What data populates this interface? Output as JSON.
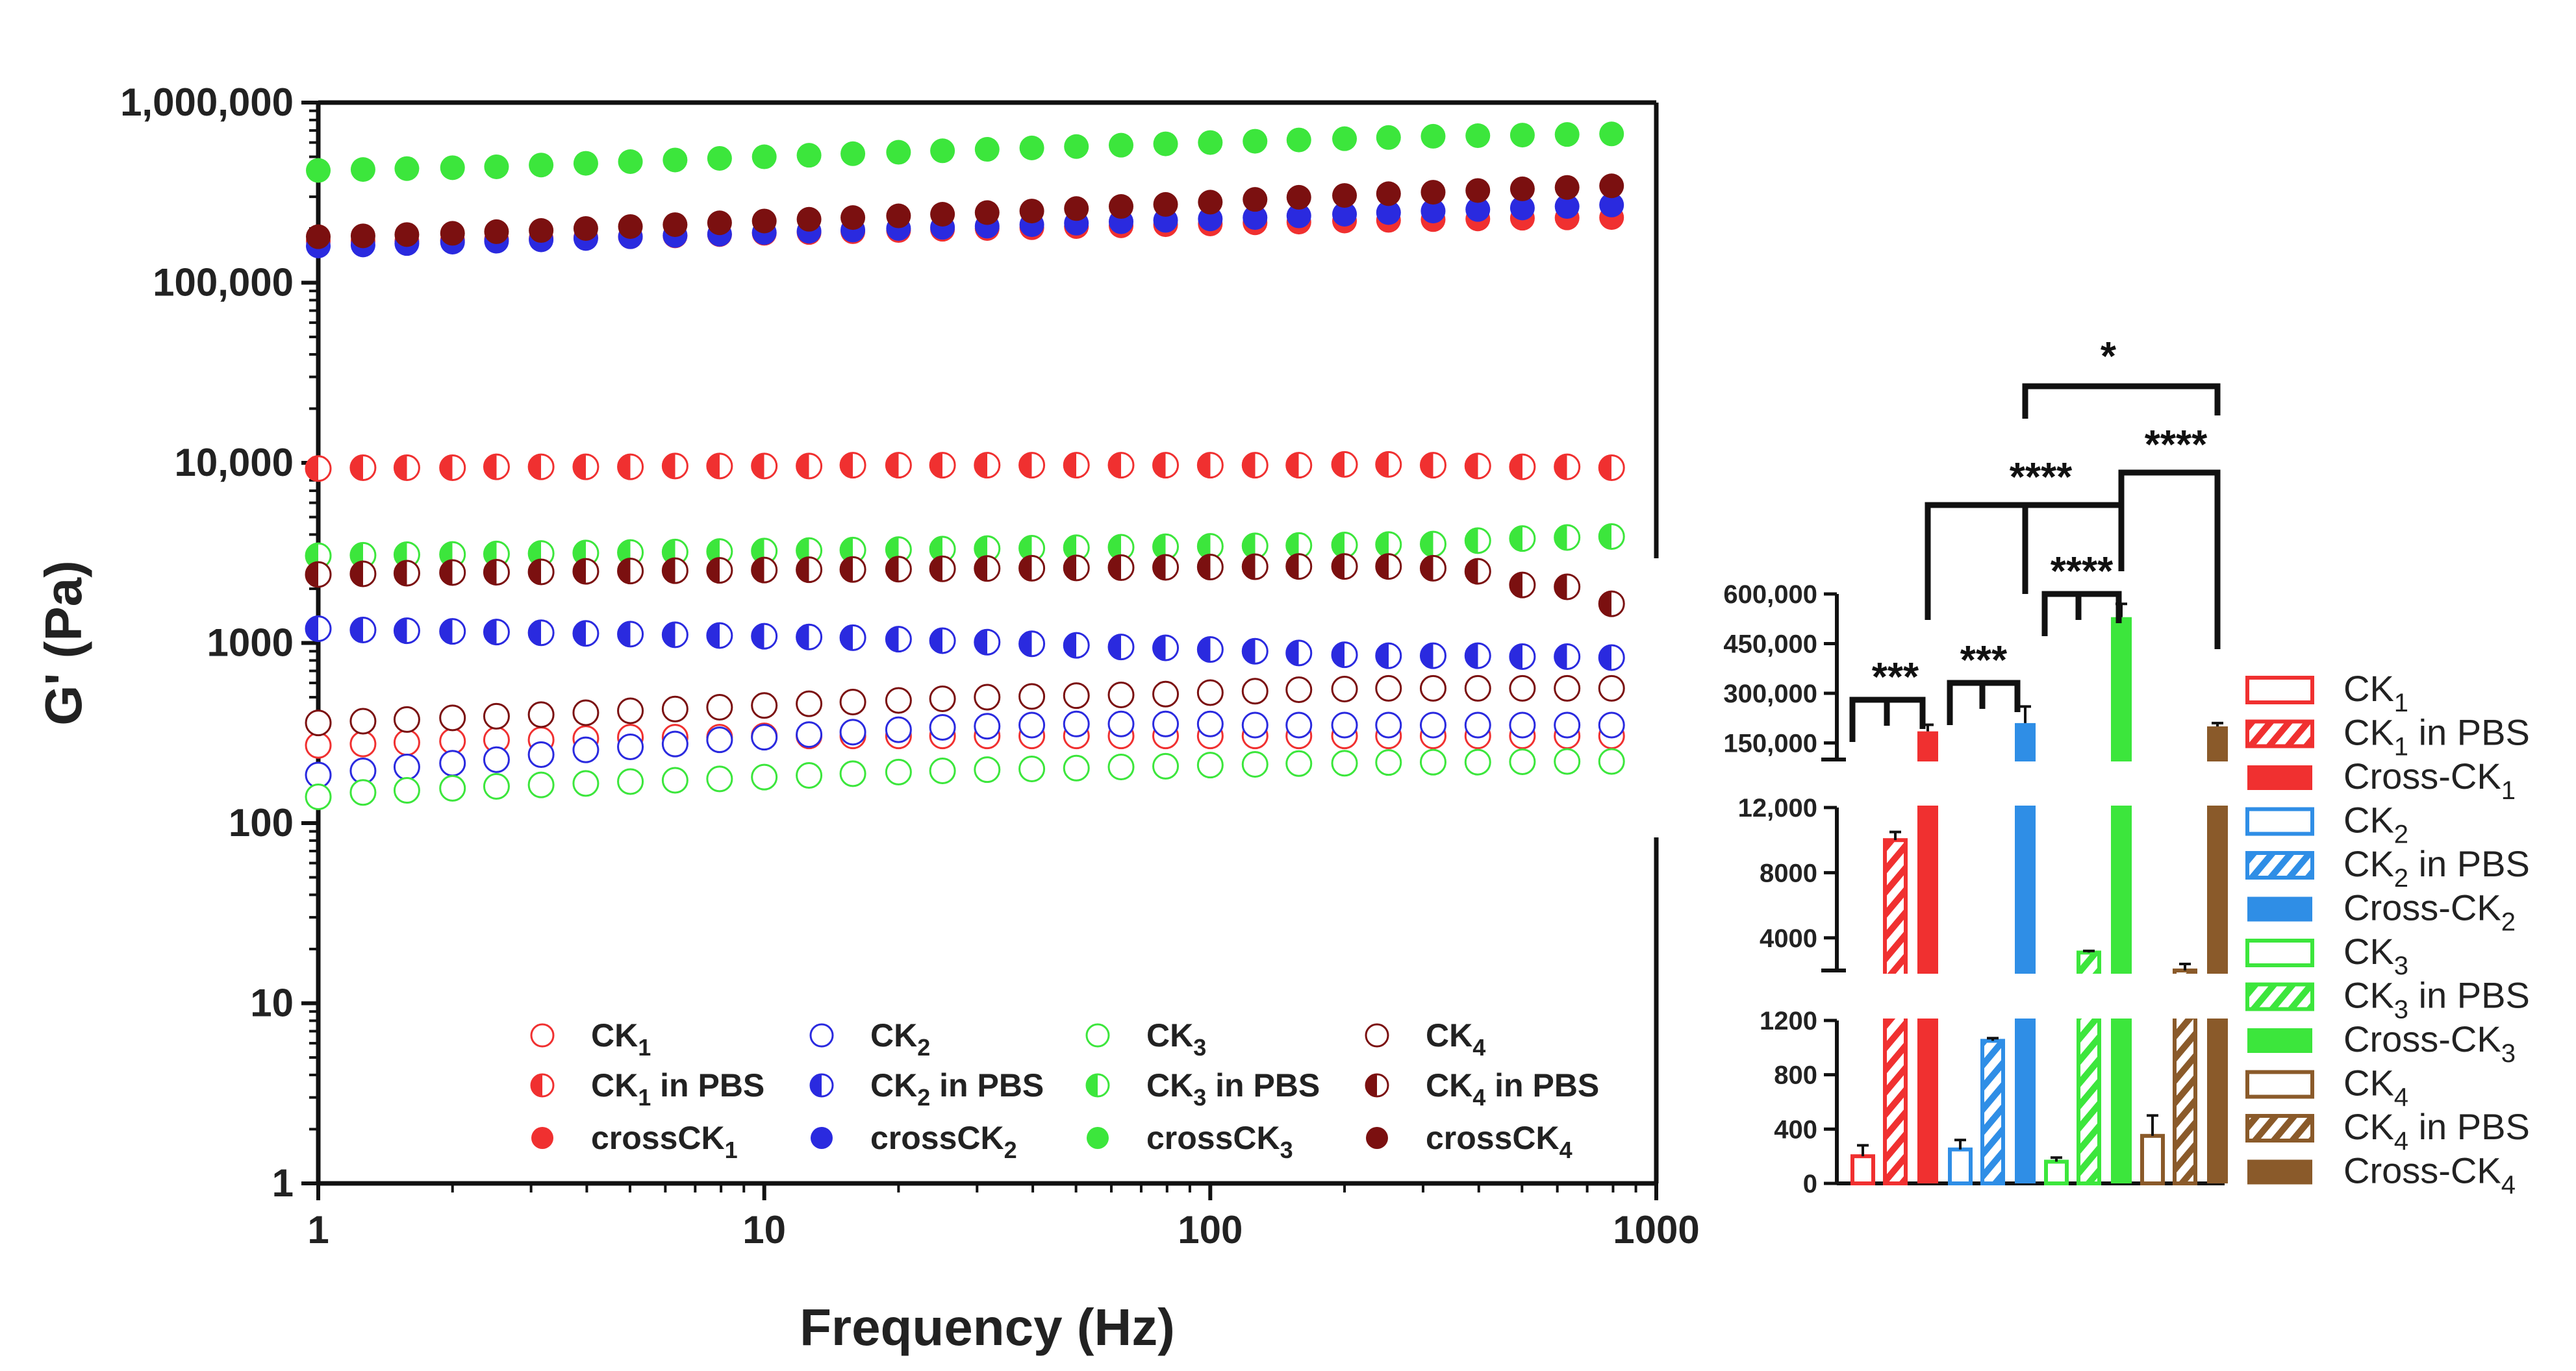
{
  "colors": {
    "CK1": "#f03030",
    "CK2": "#2a2adf",
    "CK3": "#3ce63c",
    "CK4": "#7b1010",
    "barCK1": "#f03030",
    "barCK2": "#2f8ee6",
    "barCK3": "#3ce63c",
    "barCK4": "#8a5a2a"
  },
  "chart_data": [
    {
      "type": "scatter",
      "title": "",
      "xlabel": "Frequency (Hz)",
      "ylabel": "G' (Pa)",
      "xscale": "log",
      "yscale": "log",
      "xlim": [
        1,
        1000
      ],
      "ylim": [
        1,
        1000000
      ],
      "x_ticks": [
        1,
        10,
        100,
        1000
      ],
      "x_tick_labels": [
        "1",
        "10",
        "100",
        "1000"
      ],
      "y_ticks": [
        1,
        10,
        100,
        1000,
        10000,
        100000,
        1000000
      ],
      "y_tick_labels": [
        "1",
        "10",
        "100",
        "1000",
        "10,000",
        "100,000",
        "1,000,000"
      ],
      "x": [
        1,
        1.26,
        1.58,
        2,
        2.51,
        3.16,
        3.98,
        5.01,
        6.31,
        7.94,
        10,
        12.6,
        15.8,
        20,
        25.1,
        31.6,
        39.8,
        50.1,
        63.1,
        79.4,
        100,
        126,
        158,
        200,
        251,
        316,
        398,
        501,
        631,
        794
      ],
      "series": [
        {
          "name": "CK1",
          "style": "open",
          "color_key": "CK1",
          "values": [
            270,
            275,
            280,
            285,
            290,
            290,
            295,
            300,
            300,
            300,
            305,
            305,
            305,
            305,
            305,
            305,
            305,
            305,
            305,
            305,
            305,
            305,
            305,
            305,
            305,
            305,
            305,
            305,
            305,
            305
          ]
        },
        {
          "name": "CK1 in PBS",
          "style": "half",
          "color_key": "CK1",
          "values": [
            9300,
            9400,
            9400,
            9400,
            9500,
            9500,
            9500,
            9500,
            9600,
            9600,
            9600,
            9600,
            9700,
            9700,
            9700,
            9700,
            9700,
            9700,
            9700,
            9700,
            9700,
            9700,
            9700,
            9800,
            9800,
            9700,
            9600,
            9500,
            9500,
            9400
          ]
        },
        {
          "name": "crossCK1",
          "style": "filled",
          "color_key": "CK1",
          "values": [
            170000,
            170000,
            170000,
            172000,
            174000,
            176000,
            178000,
            180000,
            182000,
            185000,
            188000,
            190000,
            192000,
            195000,
            198000,
            200000,
            202000,
            205000,
            207000,
            210000,
            212000,
            215000,
            217000,
            220000,
            222000,
            224000,
            226000,
            228000,
            229000,
            230000
          ]
        },
        {
          "name": "CK2",
          "style": "open",
          "color_key": "CK2",
          "values": [
            185,
            195,
            205,
            215,
            225,
            240,
            255,
            265,
            275,
            290,
            300,
            310,
            320,
            330,
            340,
            345,
            350,
            355,
            355,
            355,
            355,
            350,
            350,
            350,
            350,
            350,
            350,
            350,
            350,
            350
          ]
        },
        {
          "name": "CK2 in PBS",
          "style": "half",
          "color_key": "CK2",
          "values": [
            1200,
            1180,
            1170,
            1160,
            1150,
            1140,
            1130,
            1120,
            1110,
            1100,
            1090,
            1080,
            1070,
            1050,
            1030,
            1010,
            990,
            970,
            950,
            940,
            920,
            900,
            880,
            860,
            850,
            850,
            850,
            840,
            840,
            830
          ]
        },
        {
          "name": "crossCK2",
          "style": "filled",
          "color_key": "CK2",
          "values": [
            160000,
            162000,
            165000,
            168000,
            170000,
            173000,
            176000,
            180000,
            183000,
            186000,
            190000,
            193000,
            196000,
            200000,
            203000,
            206000,
            210000,
            214000,
            218000,
            222000,
            226000,
            230000,
            235000,
            240000,
            245000,
            250000,
            255000,
            260000,
            265000,
            270000
          ]
        },
        {
          "name": "CK3",
          "style": "open",
          "color_key": "CK3",
          "values": [
            140,
            148,
            152,
            156,
            160,
            163,
            166,
            170,
            173,
            176,
            180,
            184,
            188,
            192,
            195,
            198,
            200,
            202,
            205,
            207,
            210,
            212,
            214,
            215,
            217,
            218,
            218,
            219,
            220,
            220
          ]
        },
        {
          "name": "CK3 in PBS",
          "style": "half",
          "color_key": "CK3",
          "values": [
            3050,
            3070,
            3090,
            3100,
            3120,
            3140,
            3160,
            3180,
            3200,
            3220,
            3240,
            3260,
            3280,
            3300,
            3320,
            3340,
            3360,
            3380,
            3400,
            3420,
            3440,
            3460,
            3480,
            3500,
            3520,
            3540,
            3700,
            3800,
            3850,
            3900
          ]
        },
        {
          "name": "crossCK3",
          "style": "filled",
          "color_key": "CK3",
          "values": [
            420000,
            425000,
            430000,
            435000,
            440000,
            450000,
            460000,
            470000,
            480000,
            490000,
            500000,
            510000,
            520000,
            530000,
            540000,
            550000,
            560000,
            570000,
            580000,
            590000,
            600000,
            610000,
            620000,
            630000,
            640000,
            650000,
            655000,
            660000,
            665000,
            670000
          ]
        },
        {
          "name": "CK4",
          "style": "open",
          "color_key": "CK4",
          "values": [
            360,
            368,
            376,
            384,
            392,
            400,
            410,
            420,
            430,
            440,
            450,
            460,
            470,
            480,
            490,
            500,
            505,
            510,
            515,
            520,
            530,
            540,
            550,
            555,
            560,
            560,
            560,
            560,
            560,
            560
          ]
        },
        {
          "name": "CK4 in PBS",
          "style": "half",
          "color_key": "CK4",
          "values": [
            2400,
            2420,
            2440,
            2460,
            2470,
            2480,
            2500,
            2510,
            2520,
            2530,
            2540,
            2550,
            2560,
            2570,
            2580,
            2590,
            2600,
            2610,
            2620,
            2630,
            2640,
            2650,
            2660,
            2660,
            2660,
            2600,
            2500,
            2100,
            2050,
            1650
          ]
        },
        {
          "name": "crossCK4",
          "style": "filled",
          "color_key": "CK4",
          "values": [
            180000,
            182000,
            185000,
            188000,
            192000,
            195000,
            200000,
            205000,
            210000,
            215000,
            220000,
            225000,
            230000,
            235000,
            240000,
            245000,
            250000,
            258000,
            265000,
            272000,
            280000,
            290000,
            298000,
            305000,
            312000,
            318000,
            325000,
            332000,
            338000,
            345000
          ]
        }
      ],
      "legend": {
        "position": "bottom-right",
        "items": [
          {
            "label": "CK",
            "sub": "1",
            "tail": "",
            "style": "open",
            "color_key": "CK1"
          },
          {
            "label": "CK",
            "sub": "1",
            "tail": " in PBS",
            "style": "half",
            "color_key": "CK1"
          },
          {
            "label": "crossCK",
            "sub": "1",
            "tail": "",
            "style": "filled",
            "color_key": "CK1"
          },
          {
            "label": "CK",
            "sub": "2",
            "tail": "",
            "style": "open",
            "color_key": "CK2"
          },
          {
            "label": "CK",
            "sub": "2",
            "tail": " in PBS",
            "style": "half",
            "color_key": "CK2"
          },
          {
            "label": "crossCK",
            "sub": "2",
            "tail": "",
            "style": "filled",
            "color_key": "CK2"
          },
          {
            "label": "CK",
            "sub": "3",
            "tail": "",
            "style": "open",
            "color_key": "CK3"
          },
          {
            "label": "CK",
            "sub": "3",
            "tail": " in PBS",
            "style": "half",
            "color_key": "CK3"
          },
          {
            "label": "crossCK",
            "sub": "3",
            "tail": "",
            "style": "filled",
            "color_key": "CK3"
          },
          {
            "label": "CK",
            "sub": "4",
            "tail": "",
            "style": "open",
            "color_key": "CK4"
          },
          {
            "label": "CK",
            "sub": "4",
            "tail": " in PBS",
            "style": "half",
            "color_key": "CK4"
          },
          {
            "label": "crossCK",
            "sub": "4",
            "tail": "",
            "style": "filled",
            "color_key": "CK4"
          }
        ]
      }
    },
    {
      "type": "bar",
      "title": "",
      "xlabel": "",
      "ylabel": "",
      "broken_axis": true,
      "segments": [
        {
          "range": [
            0,
            1200
          ],
          "ticks": [
            0,
            400,
            800,
            1200
          ],
          "tick_labels": [
            "0",
            "400",
            "800",
            "1200"
          ]
        },
        {
          "range": [
            2000,
            12000
          ],
          "ticks": [
            4000,
            8000,
            12000
          ],
          "tick_labels": [
            "4000",
            "8000",
            "12,000"
          ]
        },
        {
          "range": [
            100000,
            600000
          ],
          "ticks": [
            150000,
            300000,
            450000,
            600000
          ],
          "tick_labels": [
            "150,000",
            "300,000",
            "450,000",
            "600,000"
          ]
        }
      ],
      "bars": [
        {
          "name": "CK1",
          "value": 200,
          "error": 80,
          "style": "open",
          "color_key": "barCK1"
        },
        {
          "name": "CK1 in PBS",
          "value": 10000,
          "error": 500,
          "style": "hatched",
          "color_key": "barCK1"
        },
        {
          "name": "Cross-CK1",
          "value": 185000,
          "error": 20000,
          "style": "filled",
          "color_key": "barCK1"
        },
        {
          "name": "CK2",
          "value": 250,
          "error": 70,
          "style": "open",
          "color_key": "barCK2"
        },
        {
          "name": "CK2 in PBS",
          "value": 1050,
          "error": 20,
          "style": "hatched",
          "color_key": "barCK2"
        },
        {
          "name": "Cross-CK2",
          "value": 210000,
          "error": 50000,
          "style": "filled",
          "color_key": "barCK2"
        },
        {
          "name": "CK3",
          "value": 160,
          "error": 30,
          "style": "open",
          "color_key": "barCK3"
        },
        {
          "name": "CK3 in PBS",
          "value": 3100,
          "error": 100,
          "style": "hatched",
          "color_key": "barCK3"
        },
        {
          "name": "Cross-CK3",
          "value": 530000,
          "error": 40000,
          "style": "filled",
          "color_key": "barCK3"
        },
        {
          "name": "CK4",
          "value": 350,
          "error": 150,
          "style": "open",
          "color_key": "barCK4"
        },
        {
          "name": "CK4 in PBS",
          "value": 2000,
          "error": 400,
          "style": "hatched",
          "color_key": "barCK4"
        },
        {
          "name": "Cross-CK4",
          "value": 200000,
          "error": 10000,
          "style": "filled",
          "color_key": "barCK4"
        }
      ],
      "significance": [
        {
          "label": "***",
          "group": "CK1"
        },
        {
          "label": "***",
          "group": "CK2"
        },
        {
          "label": "****",
          "group": "CK3"
        },
        {
          "label": "****",
          "between": [
            "Cross-CK1",
            "Cross-CK2",
            "Cross-CK3"
          ]
        },
        {
          "label": "****",
          "between": [
            "Cross-CK3",
            "Cross-CK4"
          ]
        },
        {
          "label": "*",
          "between": [
            "Cross-CK2",
            "Cross-CK4"
          ]
        }
      ],
      "legend": {
        "position": "right",
        "items": [
          {
            "label": "CK",
            "sub": "1",
            "tail": "",
            "style": "open",
            "color_key": "barCK1"
          },
          {
            "label": "CK",
            "sub": "1",
            "tail": " in PBS",
            "style": "hatched",
            "color_key": "barCK1"
          },
          {
            "label": "Cross-CK",
            "sub": "1",
            "tail": "",
            "style": "filled",
            "color_key": "barCK1"
          },
          {
            "label": "CK",
            "sub": "2",
            "tail": "",
            "style": "open",
            "color_key": "barCK2"
          },
          {
            "label": "CK",
            "sub": "2",
            "tail": " in PBS",
            "style": "hatched",
            "color_key": "barCK2"
          },
          {
            "label": "Cross-CK",
            "sub": "2",
            "tail": "",
            "style": "filled",
            "color_key": "barCK2"
          },
          {
            "label": "CK",
            "sub": "3",
            "tail": "",
            "style": "open",
            "color_key": "barCK3"
          },
          {
            "label": "CK",
            "sub": "3",
            "tail": " in PBS",
            "style": "hatched",
            "color_key": "barCK3"
          },
          {
            "label": "Cross-CK",
            "sub": "3",
            "tail": "",
            "style": "filled",
            "color_key": "barCK3"
          },
          {
            "label": "CK",
            "sub": "4",
            "tail": "",
            "style": "open",
            "color_key": "barCK4"
          },
          {
            "label": "CK",
            "sub": "4",
            "tail": " in PBS",
            "style": "hatched",
            "color_key": "barCK4"
          },
          {
            "label": "Cross-CK",
            "sub": "4",
            "tail": "",
            "style": "filled",
            "color_key": "barCK4"
          }
        ]
      }
    }
  ]
}
